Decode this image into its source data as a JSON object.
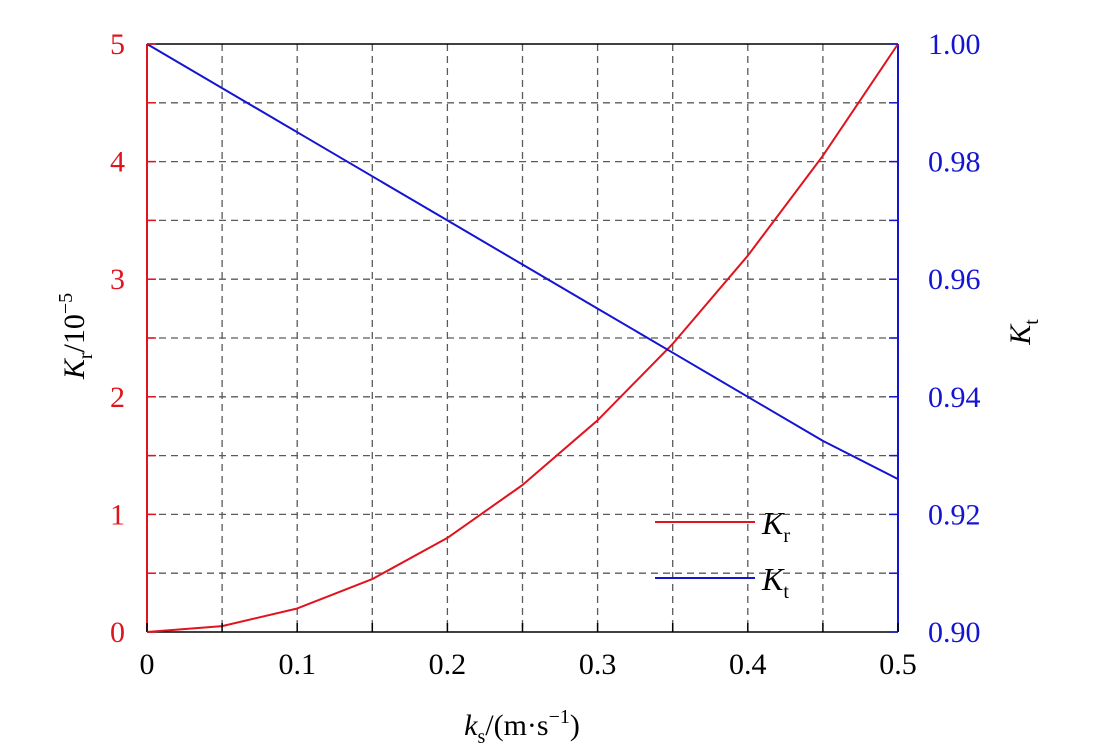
{
  "chart_data": {
    "type": "line",
    "x_axis": {
      "label_main": "k",
      "label_sub": "s",
      "label_unit": "/(m·s",
      "label_sup": "−1",
      "label_close": ")",
      "range": [
        0,
        0.5
      ],
      "ticks": [
        "0",
        "0.1",
        "0.2",
        "0.3",
        "0.4",
        "0.5"
      ]
    },
    "y_left": {
      "label_main": "K",
      "label_sub": "r",
      "label_unit": "/10",
      "label_sup": "−5",
      "range": [
        0,
        5
      ],
      "ticks": [
        "0",
        "1",
        "2",
        "3",
        "4",
        "5"
      ],
      "color": "#e0141e"
    },
    "y_right": {
      "label_main": "K",
      "label_sub": "t",
      "range": [
        0.9,
        1.0
      ],
      "ticks": [
        "0.90",
        "0.92",
        "0.94",
        "0.96",
        "0.98",
        "1.00"
      ],
      "color": "#1414d2"
    },
    "grid": true,
    "legend_position": "bottom-right",
    "series": [
      {
        "name_main": "K",
        "name_sub": "r",
        "axis": "left",
        "color": "#e0141e",
        "x": [
          0,
          0.05,
          0.1,
          0.15,
          0.2,
          0.25,
          0.3,
          0.35,
          0.4,
          0.45,
          0.5
        ],
        "y": [
          0,
          0.05,
          0.2,
          0.45,
          0.8,
          1.25,
          1.8,
          2.45,
          3.2,
          4.05,
          5.0
        ]
      },
      {
        "name_main": "K",
        "name_sub": "t",
        "axis": "right",
        "color": "#1414d2",
        "x": [
          0,
          0.05,
          0.1,
          0.15,
          0.2,
          0.25,
          0.3,
          0.35,
          0.4,
          0.45,
          0.5
        ],
        "y": [
          1.0,
          0.9925,
          0.985,
          0.9775,
          0.97,
          0.9625,
          0.955,
          0.9475,
          0.94,
          0.9325,
          0.926
        ]
      }
    ]
  }
}
